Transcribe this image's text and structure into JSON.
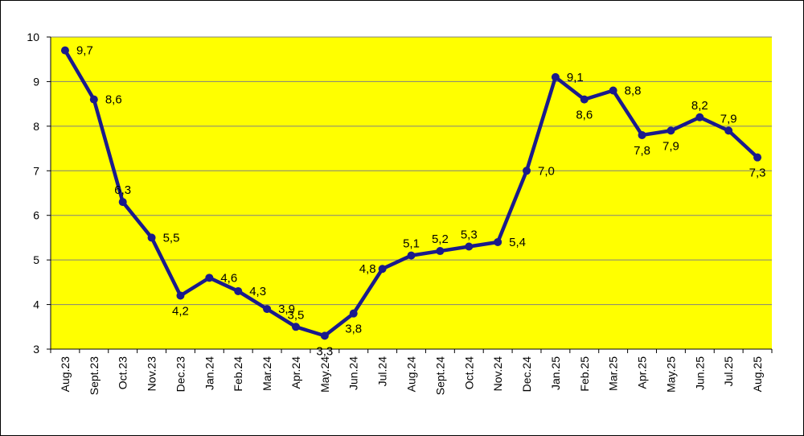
{
  "chart_data": {
    "type": "line",
    "title": "",
    "xlabel": "",
    "ylabel": "",
    "ylim": [
      3,
      10
    ],
    "yticks": [
      3,
      4,
      5,
      6,
      7,
      8,
      9,
      10
    ],
    "grid": "horizontal",
    "legend": "none",
    "colors": {
      "plot_background": "#FFFF00",
      "line": "#1A1A8C",
      "gridline": "#808080"
    },
    "categories": [
      "Aug.23",
      "Sept.23",
      "Oct.23",
      "Nov.23",
      "Dec.23",
      "Jan.24",
      "Feb.24",
      "Mar.24",
      "Apr.24",
      "May.24",
      "Jun.24",
      "Jul.24",
      "Aug.24",
      "Sept.24",
      "Oct.24",
      "Nov.24",
      "Dec.24",
      "Jan.25",
      "Feb.25",
      "Mar.25",
      "Apr.25",
      "May.25",
      "Jun.25",
      "Jul.25",
      "Aug.25"
    ],
    "values": [
      9.7,
      8.6,
      6.3,
      5.5,
      4.2,
      4.6,
      4.3,
      3.9,
      3.5,
      3.3,
      3.8,
      4.8,
      5.1,
      5.2,
      5.3,
      5.4,
      7.0,
      9.1,
      8.6,
      8.8,
      7.8,
      7.9,
      8.2,
      7.9,
      7.3
    ],
    "data_labels": [
      "9,7",
      "8,6",
      "6,3",
      "5,5",
      "4,2",
      "4,6",
      "4,3",
      "3,9",
      "3,5",
      "3,3",
      "3,8",
      "4,8",
      "5,1",
      "5,2",
      "5,3",
      "5,4",
      "7,0",
      "9,1",
      "8,6",
      "8,8",
      "7,8",
      "7,9",
      "8,2",
      "7,9",
      "7,3"
    ],
    "label_positions": [
      "right",
      "right",
      "above",
      "right",
      "below",
      "right",
      "right",
      "right",
      "above",
      "below",
      "below",
      "left",
      "above",
      "above",
      "above",
      "right",
      "right",
      "right",
      "below",
      "right",
      "below",
      "below",
      "above",
      "above",
      "below"
    ]
  }
}
